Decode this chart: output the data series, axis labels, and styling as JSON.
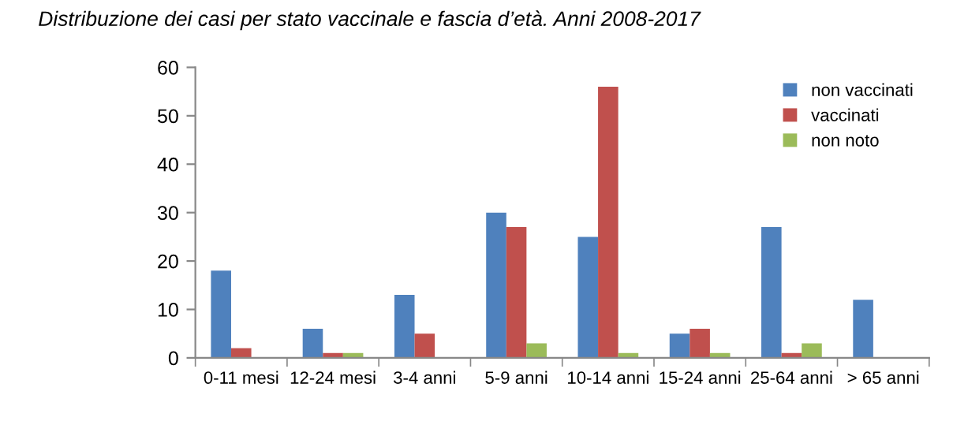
{
  "chart_data": {
    "type": "bar",
    "title": "Distribuzione dei casi per stato vaccinale e fascia d’età. Anni 2008-2017",
    "categories": [
      "0-11 mesi",
      "12-24 mesi",
      "3-4 anni",
      "5-9 anni",
      "10-14 anni",
      "15-24 anni",
      "25-64 anni",
      "> 65 anni"
    ],
    "series": [
      {
        "name": "non vaccinati",
        "color": "#4f81bd",
        "values": [
          18,
          6,
          13,
          30,
          25,
          5,
          27,
          12
        ]
      },
      {
        "name": "vaccinati",
        "color": "#c0504d",
        "values": [
          2,
          1,
          5,
          27,
          56,
          6,
          1,
          0
        ]
      },
      {
        "name": "non noto",
        "color": "#9bbb59",
        "values": [
          0,
          1,
          0,
          3,
          1,
          1,
          3,
          0
        ]
      }
    ],
    "ylim": [
      0,
      60
    ],
    "yticks": [
      0,
      10,
      20,
      30,
      40,
      50,
      60
    ],
    "grid": false,
    "legend": "top right"
  }
}
